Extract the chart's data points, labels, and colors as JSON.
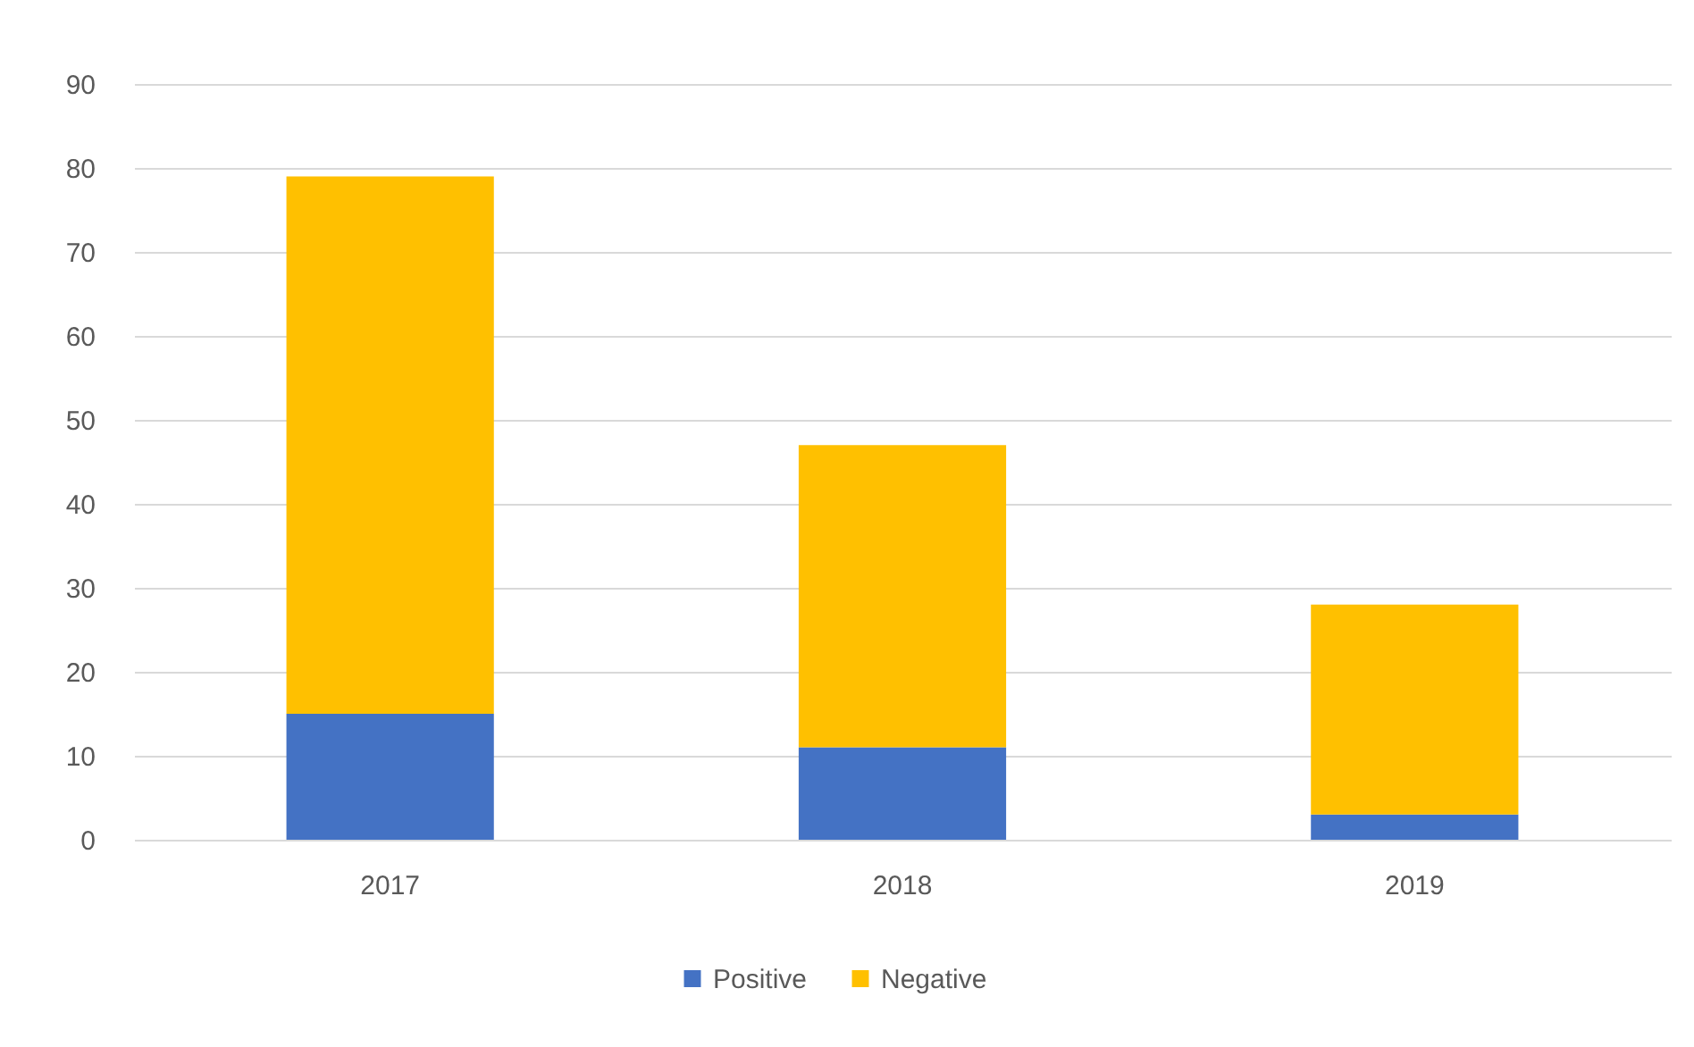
{
  "chart_data": {
    "type": "bar",
    "stacked": true,
    "categories": [
      "2017",
      "2018",
      "2019"
    ],
    "series": [
      {
        "name": "Positive",
        "color": "#4472c4",
        "values": [
          15,
          11,
          3
        ]
      },
      {
        "name": "Negative",
        "color": "#ffc000",
        "values": [
          64,
          36,
          25
        ]
      }
    ],
    "ylim": [
      0,
      90
    ],
    "yticks": [
      0,
      10,
      20,
      30,
      40,
      50,
      60,
      70,
      80,
      90
    ],
    "grid": "y",
    "legend": "bottom"
  }
}
